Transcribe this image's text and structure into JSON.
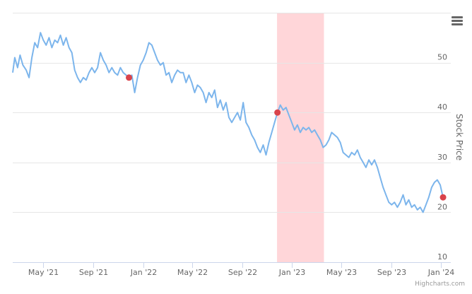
{
  "chart_data": {
    "type": "line",
    "title": "",
    "xlabel": "",
    "ylabel": "Stock Price",
    "ylim": [
      10,
      60
    ],
    "xlim": [
      "2021-02-15",
      "2024-01-25"
    ],
    "x_ticks": [
      {
        "date": "2021-05-01",
        "label": "May '21"
      },
      {
        "date": "2021-09-01",
        "label": "Sep '21"
      },
      {
        "date": "2022-01-01",
        "label": "Jan '22"
      },
      {
        "date": "2022-05-01",
        "label": "May '22"
      },
      {
        "date": "2022-09-01",
        "label": "Sep '22"
      },
      {
        "date": "2023-01-01",
        "label": "Jan '23"
      },
      {
        "date": "2023-05-01",
        "label": "May '23"
      },
      {
        "date": "2023-09-01",
        "label": "Sep '23"
      },
      {
        "date": "2024-01-01",
        "label": "Jan '24"
      }
    ],
    "y_ticks": [
      10,
      20,
      30,
      40,
      50
    ],
    "grid": true,
    "shaded_band": {
      "from": "2022-11-25",
      "to": "2023-03-20",
      "color": "#ffd6d9"
    },
    "series": [
      {
        "color": "#7cb5ec",
        "points": [
          [
            "2021-02-15",
            48.0
          ],
          [
            "2021-02-20",
            51.0
          ],
          [
            "2021-02-27",
            49.0
          ],
          [
            "2021-03-05",
            51.5
          ],
          [
            "2021-03-12",
            49.5
          ],
          [
            "2021-03-20",
            48.5
          ],
          [
            "2021-03-27",
            47.0
          ],
          [
            "2021-04-03",
            51.0
          ],
          [
            "2021-04-10",
            54.0
          ],
          [
            "2021-04-17",
            53.0
          ],
          [
            "2021-04-24",
            56.0
          ],
          [
            "2021-05-01",
            54.5
          ],
          [
            "2021-05-08",
            53.5
          ],
          [
            "2021-05-15",
            55.0
          ],
          [
            "2021-05-22",
            53.0
          ],
          [
            "2021-05-29",
            54.5
          ],
          [
            "2021-06-05",
            54.0
          ],
          [
            "2021-06-12",
            55.5
          ],
          [
            "2021-06-19",
            53.5
          ],
          [
            "2021-06-26",
            55.0
          ],
          [
            "2021-07-03",
            53.0
          ],
          [
            "2021-07-10",
            52.0
          ],
          [
            "2021-07-17",
            48.5
          ],
          [
            "2021-07-24",
            47.0
          ],
          [
            "2021-07-31",
            46.0
          ],
          [
            "2021-08-07",
            47.0
          ],
          [
            "2021-08-14",
            46.5
          ],
          [
            "2021-08-21",
            48.0
          ],
          [
            "2021-08-28",
            49.0
          ],
          [
            "2021-09-04",
            48.0
          ],
          [
            "2021-09-11",
            49.0
          ],
          [
            "2021-09-18",
            52.0
          ],
          [
            "2021-09-25",
            50.5
          ],
          [
            "2021-10-02",
            49.5
          ],
          [
            "2021-10-09",
            48.0
          ],
          [
            "2021-10-16",
            49.0
          ],
          [
            "2021-10-23",
            48.0
          ],
          [
            "2021-10-30",
            47.5
          ],
          [
            "2021-11-06",
            49.0
          ],
          [
            "2021-11-13",
            48.0
          ],
          [
            "2021-11-20",
            47.5
          ],
          [
            "2021-11-27",
            47.0
          ],
          [
            "2021-12-04",
            47.5
          ],
          [
            "2021-12-11",
            44.0
          ],
          [
            "2021-12-18",
            47.0
          ],
          [
            "2021-12-25",
            49.5
          ],
          [
            "2022-01-01",
            50.5
          ],
          [
            "2022-01-08",
            52.0
          ],
          [
            "2022-01-15",
            54.0
          ],
          [
            "2022-01-22",
            53.5
          ],
          [
            "2022-01-29",
            52.0
          ],
          [
            "2022-02-05",
            50.5
          ],
          [
            "2022-02-12",
            49.5
          ],
          [
            "2022-02-19",
            50.0
          ],
          [
            "2022-02-26",
            47.5
          ],
          [
            "2022-03-05",
            48.0
          ],
          [
            "2022-03-12",
            46.0
          ],
          [
            "2022-03-19",
            47.5
          ],
          [
            "2022-03-26",
            48.5
          ],
          [
            "2022-04-02",
            48.0
          ],
          [
            "2022-04-09",
            48.0
          ],
          [
            "2022-04-16",
            46.0
          ],
          [
            "2022-04-23",
            47.5
          ],
          [
            "2022-04-30",
            46.0
          ],
          [
            "2022-05-07",
            44.0
          ],
          [
            "2022-05-14",
            45.5
          ],
          [
            "2022-05-21",
            45.0
          ],
          [
            "2022-05-28",
            44.0
          ],
          [
            "2022-06-04",
            42.0
          ],
          [
            "2022-06-11",
            44.0
          ],
          [
            "2022-06-18",
            43.0
          ],
          [
            "2022-06-25",
            44.5
          ],
          [
            "2022-07-02",
            41.0
          ],
          [
            "2022-07-09",
            42.5
          ],
          [
            "2022-07-16",
            40.5
          ],
          [
            "2022-07-23",
            42.0
          ],
          [
            "2022-07-30",
            39.0
          ],
          [
            "2022-08-06",
            38.0
          ],
          [
            "2022-08-13",
            39.0
          ],
          [
            "2022-08-20",
            40.0
          ],
          [
            "2022-08-27",
            38.5
          ],
          [
            "2022-09-03",
            42.0
          ],
          [
            "2022-09-10",
            38.0
          ],
          [
            "2022-09-17",
            37.0
          ],
          [
            "2022-09-24",
            35.5
          ],
          [
            "2022-10-01",
            34.5
          ],
          [
            "2022-10-08",
            33.0
          ],
          [
            "2022-10-15",
            32.0
          ],
          [
            "2022-10-22",
            33.5
          ],
          [
            "2022-10-29",
            31.5
          ],
          [
            "2022-11-05",
            34.0
          ],
          [
            "2022-11-12",
            36.0
          ],
          [
            "2022-11-19",
            38.0
          ],
          [
            "2022-11-26",
            40.0
          ],
          [
            "2022-12-03",
            41.5
          ],
          [
            "2022-12-10",
            40.5
          ],
          [
            "2022-12-17",
            41.0
          ],
          [
            "2022-12-24",
            39.5
          ],
          [
            "2022-12-31",
            38.0
          ],
          [
            "2023-01-07",
            36.5
          ],
          [
            "2023-01-14",
            37.5
          ],
          [
            "2023-01-21",
            36.0
          ],
          [
            "2023-01-28",
            37.0
          ],
          [
            "2023-02-04",
            36.5
          ],
          [
            "2023-02-11",
            37.0
          ],
          [
            "2023-02-18",
            36.0
          ],
          [
            "2023-02-25",
            36.5
          ],
          [
            "2023-03-04",
            35.5
          ],
          [
            "2023-03-11",
            34.5
          ],
          [
            "2023-03-18",
            33.0
          ],
          [
            "2023-03-25",
            33.5
          ],
          [
            "2023-04-01",
            34.5
          ],
          [
            "2023-04-08",
            36.0
          ],
          [
            "2023-04-15",
            35.5
          ],
          [
            "2023-04-22",
            35.0
          ],
          [
            "2023-04-29",
            34.0
          ],
          [
            "2023-05-06",
            32.0
          ],
          [
            "2023-05-13",
            31.5
          ],
          [
            "2023-05-20",
            31.0
          ],
          [
            "2023-05-27",
            32.0
          ],
          [
            "2023-06-03",
            31.5
          ],
          [
            "2023-06-10",
            32.5
          ],
          [
            "2023-06-17",
            31.0
          ],
          [
            "2023-06-24",
            30.0
          ],
          [
            "2023-07-01",
            29.0
          ],
          [
            "2023-07-08",
            30.5
          ],
          [
            "2023-07-15",
            29.5
          ],
          [
            "2023-07-22",
            30.5
          ],
          [
            "2023-07-29",
            29.0
          ],
          [
            "2023-08-05",
            27.0
          ],
          [
            "2023-08-12",
            25.0
          ],
          [
            "2023-08-19",
            23.5
          ],
          [
            "2023-08-26",
            22.0
          ],
          [
            "2023-09-02",
            21.5
          ],
          [
            "2023-09-09",
            22.0
          ],
          [
            "2023-09-16",
            21.0
          ],
          [
            "2023-09-23",
            22.0
          ],
          [
            "2023-09-30",
            23.5
          ],
          [
            "2023-10-07",
            21.5
          ],
          [
            "2023-10-14",
            22.5
          ],
          [
            "2023-10-21",
            21.0
          ],
          [
            "2023-10-28",
            21.5
          ],
          [
            "2023-11-04",
            20.5
          ],
          [
            "2023-11-11",
            21.0
          ],
          [
            "2023-11-18",
            20.0
          ],
          [
            "2023-11-25",
            21.5
          ],
          [
            "2023-12-02",
            23.0
          ],
          [
            "2023-12-09",
            25.0
          ],
          [
            "2023-12-16",
            26.0
          ],
          [
            "2023-12-23",
            26.5
          ],
          [
            "2023-12-30",
            25.5
          ],
          [
            "2024-01-06",
            23.0
          ]
        ]
      }
    ],
    "markers": [
      {
        "date": "2021-11-27",
        "value": 47.0,
        "color": "#d9434b"
      },
      {
        "date": "2022-11-26",
        "value": 40.0,
        "color": "#d9434b"
      },
      {
        "date": "2024-01-06",
        "value": 23.0,
        "color": "#d9434b"
      }
    ]
  },
  "credits": "Highcharts.com",
  "menu_icon": "hamburger-menu-icon"
}
